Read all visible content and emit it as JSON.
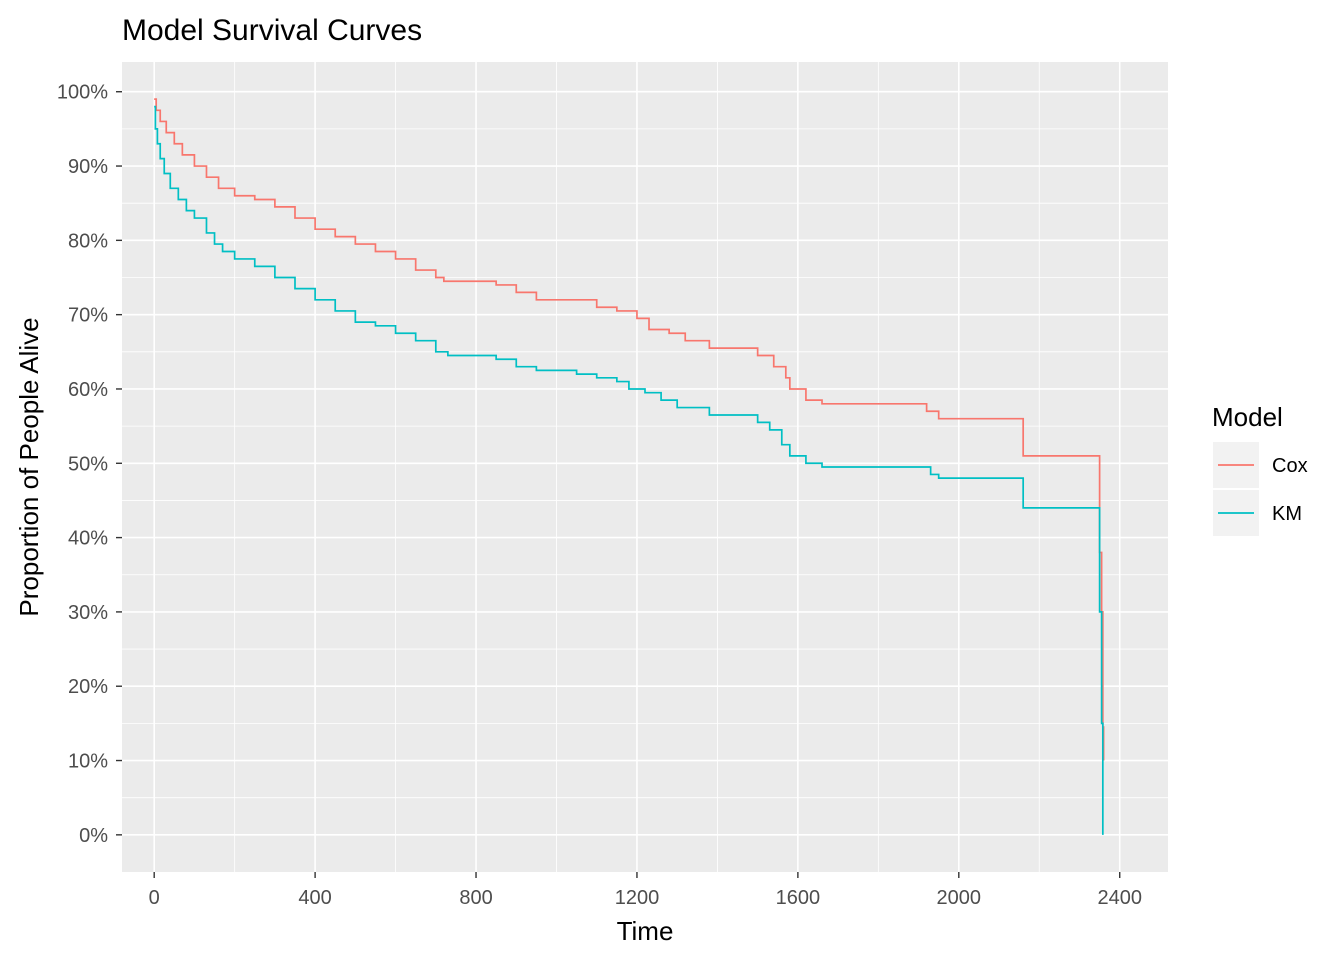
{
  "chart_data": {
    "type": "line",
    "title": "Model Survival Curves",
    "xlabel": "Time",
    "ylabel": "Proportion of People Alive",
    "xlim": [
      -80,
      2520
    ],
    "ylim": [
      -0.05,
      1.04
    ],
    "x_ticks": [
      0,
      400,
      800,
      1200,
      1600,
      2000,
      2400
    ],
    "x_tick_labels": [
      "0",
      "400",
      "800",
      "1200",
      "1600",
      "2000",
      "2400"
    ],
    "y_ticks": [
      0,
      0.1,
      0.2,
      0.3,
      0.4,
      0.5,
      0.6,
      0.7,
      0.8,
      0.9,
      1.0
    ],
    "y_tick_labels": [
      "0%",
      "10%",
      "20%",
      "30%",
      "40%",
      "50%",
      "60%",
      "70%",
      "80%",
      "90%",
      "100%"
    ],
    "grid": true,
    "step": true,
    "legend": {
      "title": "Model",
      "position": "right"
    },
    "series": [
      {
        "name": "Cox",
        "color": "#F8766D",
        "points": [
          [
            0,
            0.99
          ],
          [
            5,
            0.975
          ],
          [
            15,
            0.96
          ],
          [
            30,
            0.945
          ],
          [
            50,
            0.93
          ],
          [
            70,
            0.915
          ],
          [
            100,
            0.9
          ],
          [
            130,
            0.885
          ],
          [
            160,
            0.87
          ],
          [
            200,
            0.86
          ],
          [
            250,
            0.855
          ],
          [
            300,
            0.845
          ],
          [
            350,
            0.83
          ],
          [
            400,
            0.815
          ],
          [
            450,
            0.805
          ],
          [
            500,
            0.795
          ],
          [
            550,
            0.785
          ],
          [
            600,
            0.775
          ],
          [
            650,
            0.76
          ],
          [
            700,
            0.75
          ],
          [
            720,
            0.745
          ],
          [
            850,
            0.74
          ],
          [
            900,
            0.73
          ],
          [
            950,
            0.72
          ],
          [
            1050,
            0.72
          ],
          [
            1100,
            0.71
          ],
          [
            1150,
            0.705
          ],
          [
            1200,
            0.695
          ],
          [
            1230,
            0.68
          ],
          [
            1280,
            0.675
          ],
          [
            1320,
            0.665
          ],
          [
            1380,
            0.655
          ],
          [
            1500,
            0.645
          ],
          [
            1540,
            0.63
          ],
          [
            1570,
            0.615
          ],
          [
            1580,
            0.6
          ],
          [
            1620,
            0.585
          ],
          [
            1660,
            0.58
          ],
          [
            1920,
            0.57
          ],
          [
            1950,
            0.56
          ],
          [
            2160,
            0.51
          ],
          [
            2350,
            0.38
          ],
          [
            2355,
            0.3
          ],
          [
            2358,
            0.145
          ],
          [
            2360,
            0.1
          ]
        ]
      },
      {
        "name": "KM",
        "color": "#00BFC4",
        "points": [
          [
            0,
            0.98
          ],
          [
            3,
            0.95
          ],
          [
            8,
            0.93
          ],
          [
            15,
            0.91
          ],
          [
            25,
            0.89
          ],
          [
            40,
            0.87
          ],
          [
            60,
            0.855
          ],
          [
            80,
            0.84
          ],
          [
            100,
            0.83
          ],
          [
            130,
            0.81
          ],
          [
            150,
            0.795
          ],
          [
            170,
            0.785
          ],
          [
            200,
            0.775
          ],
          [
            250,
            0.765
          ],
          [
            300,
            0.75
          ],
          [
            350,
            0.735
          ],
          [
            400,
            0.72
          ],
          [
            450,
            0.705
          ],
          [
            500,
            0.69
          ],
          [
            550,
            0.685
          ],
          [
            600,
            0.675
          ],
          [
            650,
            0.665
          ],
          [
            700,
            0.65
          ],
          [
            730,
            0.645
          ],
          [
            850,
            0.64
          ],
          [
            900,
            0.63
          ],
          [
            950,
            0.625
          ],
          [
            1050,
            0.62
          ],
          [
            1100,
            0.615
          ],
          [
            1150,
            0.61
          ],
          [
            1180,
            0.6
          ],
          [
            1220,
            0.595
          ],
          [
            1260,
            0.585
          ],
          [
            1300,
            0.575
          ],
          [
            1380,
            0.565
          ],
          [
            1500,
            0.555
          ],
          [
            1530,
            0.545
          ],
          [
            1560,
            0.525
          ],
          [
            1580,
            0.51
          ],
          [
            1620,
            0.5
          ],
          [
            1660,
            0.495
          ],
          [
            1930,
            0.485
          ],
          [
            1950,
            0.48
          ],
          [
            2160,
            0.44
          ],
          [
            2350,
            0.3
          ],
          [
            2355,
            0.15
          ],
          [
            2358,
            0.0
          ]
        ]
      }
    ]
  }
}
